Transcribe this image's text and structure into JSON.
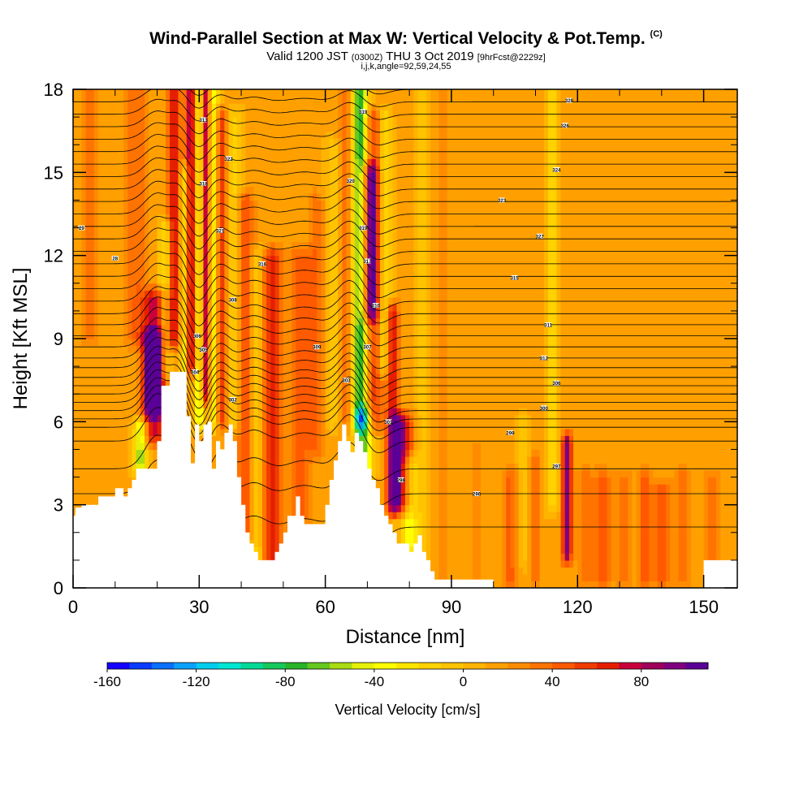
{
  "header": {
    "title": "Wind-Parallel Section at Max W: Vertical Velocity & Pot.Temp.",
    "copyright": "(C)",
    "valid_prefix": "Valid 1200 JST",
    "valid_utc": "(0300Z)",
    "valid_date": "THU 3 Oct 2019",
    "forecast": "[9hrFcst@2229z]",
    "params": "i,j,k,angle=92,59,24,55"
  },
  "chart_data": {
    "type": "heatmap",
    "xlabel": "Distance [nm]",
    "ylabel": "Height [Kft MSL]",
    "xlim": [
      0,
      158
    ],
    "ylim": [
      0,
      18
    ],
    "xticks": [
      0,
      30,
      60,
      90,
      120,
      150
    ],
    "yticks": [
      0,
      3,
      6,
      9,
      12,
      15,
      18
    ],
    "x_minor_step": 10,
    "y_minor_step": 1,
    "colorbar": {
      "label": "Vertical Velocity [cm/s]",
      "min": -160,
      "max": 110,
      "step": 10,
      "ticks": [
        -160,
        -120,
        -80,
        -40,
        0,
        40,
        80
      ],
      "colors": [
        "#1400ff",
        "#0a3cff",
        "#0a6eff",
        "#0aa0ff",
        "#00ccee",
        "#00e6d2",
        "#00d896",
        "#14c85a",
        "#28b428",
        "#64c81e",
        "#aadc14",
        "#e6f00a",
        "#ffff00",
        "#ffe600",
        "#ffd200",
        "#ffc300",
        "#ffb400",
        "#ffa000",
        "#ff8c00",
        "#ff7300",
        "#ff5a00",
        "#f03c00",
        "#e61e00",
        "#c8003c",
        "#a0005a",
        "#800080",
        "#5a0096"
      ]
    },
    "terrain_profile_kft": [
      [
        0,
        2.6
      ],
      [
        0.5,
        2.6
      ],
      [
        0.6,
        2.9
      ],
      [
        2,
        2.9
      ],
      [
        2,
        3
      ],
      [
        6,
        3
      ],
      [
        6,
        3.3
      ],
      [
        10,
        3.3
      ],
      [
        10,
        3.6
      ],
      [
        12,
        3.6
      ],
      [
        12,
        3.3
      ],
      [
        13,
        3.3
      ],
      [
        13,
        3.6
      ],
      [
        14,
        3.6
      ],
      [
        14,
        3.9
      ],
      [
        15,
        3.9
      ],
      [
        15,
        4.3
      ],
      [
        20,
        4.3
      ],
      [
        20,
        5.3
      ],
      [
        21,
        5.3
      ],
      [
        21,
        7.3
      ],
      [
        23,
        7.3
      ],
      [
        23,
        7.8
      ],
      [
        27,
        7.8
      ],
      [
        27,
        6.2
      ],
      [
        28,
        6.2
      ],
      [
        28,
        4.5
      ],
      [
        29,
        4.5
      ],
      [
        29,
        5.9
      ],
      [
        30,
        5.9
      ],
      [
        30,
        5.3
      ],
      [
        31,
        5.3
      ],
      [
        31,
        5.9
      ],
      [
        32,
        5.9
      ],
      [
        32,
        6
      ],
      [
        33,
        6
      ],
      [
        33,
        4.3
      ],
      [
        34,
        4.3
      ],
      [
        34,
        5.3
      ],
      [
        35,
        5.3
      ],
      [
        35,
        5
      ],
      [
        36,
        5
      ],
      [
        36,
        5.6
      ],
      [
        37,
        5.6
      ],
      [
        37,
        5.9
      ],
      [
        38,
        5.9
      ],
      [
        38,
        5.3
      ],
      [
        39,
        5.3
      ],
      [
        39,
        4
      ],
      [
        40,
        4
      ],
      [
        40,
        3
      ],
      [
        41,
        3
      ],
      [
        41,
        2
      ],
      [
        42,
        2
      ],
      [
        42,
        1.6
      ],
      [
        43,
        1.6
      ],
      [
        43,
        1.3
      ],
      [
        44,
        1.3
      ],
      [
        44,
        1
      ],
      [
        48,
        1
      ],
      [
        48,
        1.3
      ],
      [
        49,
        1.3
      ],
      [
        49,
        1.6
      ],
      [
        50,
        1.6
      ],
      [
        50,
        2
      ],
      [
        51,
        2
      ],
      [
        51,
        2.6
      ],
      [
        53,
        2.6
      ],
      [
        53,
        3.3
      ],
      [
        54,
        3.3
      ],
      [
        54,
        2.6
      ],
      [
        55,
        2.6
      ],
      [
        55,
        2.3
      ],
      [
        60,
        2.3
      ],
      [
        60,
        3
      ],
      [
        61,
        3
      ],
      [
        61,
        3.9
      ],
      [
        62,
        3.9
      ],
      [
        62,
        4.6
      ],
      [
        63,
        4.6
      ],
      [
        63,
        5.3
      ],
      [
        64,
        5.3
      ],
      [
        64,
        5.9
      ],
      [
        65,
        5.9
      ],
      [
        65,
        5.3
      ],
      [
        66,
        5.3
      ],
      [
        66,
        4.9
      ],
      [
        67,
        4.9
      ],
      [
        67,
        5.6
      ],
      [
        68,
        5.6
      ],
      [
        68,
        5.3
      ],
      [
        69,
        5.3
      ],
      [
        69,
        4.9
      ],
      [
        70,
        4.9
      ],
      [
        70,
        4.3
      ],
      [
        71,
        4.3
      ],
      [
        71,
        3.9
      ],
      [
        72,
        3.9
      ],
      [
        72,
        3.6
      ],
      [
        73,
        3.6
      ],
      [
        73,
        3
      ],
      [
        74,
        3
      ],
      [
        74,
        2.6
      ],
      [
        75,
        2.6
      ],
      [
        75,
        2.3
      ],
      [
        76,
        2.3
      ],
      [
        76,
        2
      ],
      [
        77,
        2
      ],
      [
        77,
        1.6
      ],
      [
        80,
        1.6
      ],
      [
        80,
        1.3
      ],
      [
        81,
        1.3
      ],
      [
        81,
        1.6
      ],
      [
        82,
        1.6
      ],
      [
        82,
        1.9
      ],
      [
        83,
        1.9
      ],
      [
        83,
        1.3
      ],
      [
        84,
        1.3
      ],
      [
        84,
        1
      ],
      [
        85,
        1
      ],
      [
        85,
        0.6
      ],
      [
        86,
        0.6
      ],
      [
        86,
        0.3
      ],
      [
        100,
        0.3
      ],
      [
        100,
        0
      ],
      [
        158,
        0
      ]
    ],
    "updraft_columns": [
      {
        "x": 4,
        "half_width": 2.5,
        "w": 20,
        "y0": 9,
        "y1": 18
      },
      {
        "x": 15,
        "half_width": 3,
        "w": 25,
        "y0": 9,
        "y1": 18
      },
      {
        "x": 19,
        "half_width": 2,
        "w": 100,
        "y0": 6.5,
        "y1": 9
      },
      {
        "x": 19.5,
        "half_width": 3,
        "w": 60,
        "y0": 5.5,
        "y1": 10.5
      },
      {
        "x": 16,
        "half_width": 1.5,
        "w": -70,
        "y0": 4.4,
        "y1": 5.8
      },
      {
        "x": 22,
        "half_width": 1.5,
        "w": -40,
        "y0": 7.8,
        "y1": 13
      },
      {
        "x": 24,
        "half_width": 1.5,
        "w": 60,
        "y0": 9,
        "y1": 18
      },
      {
        "x": 26.5,
        "half_width": 1,
        "w": -50,
        "y0": 7.8,
        "y1": 15
      },
      {
        "x": 28,
        "half_width": 1.2,
        "w": 70,
        "y0": 8,
        "y1": 18
      },
      {
        "x": 30,
        "half_width": 1,
        "w": -60,
        "y0": 6,
        "y1": 18
      },
      {
        "x": 31.5,
        "half_width": 1,
        "w": 75,
        "y0": 7,
        "y1": 18
      },
      {
        "x": 33.5,
        "half_width": 1.2,
        "w": -45,
        "y0": 6,
        "y1": 18
      },
      {
        "x": 35.5,
        "half_width": 1.5,
        "w": 50,
        "y0": 6,
        "y1": 17
      },
      {
        "x": 38,
        "half_width": 2,
        "w": -30,
        "y0": 6,
        "y1": 17
      },
      {
        "x": 41,
        "half_width": 2,
        "w": 40,
        "y0": 2,
        "y1": 14
      },
      {
        "x": 44,
        "half_width": 2,
        "w": -35,
        "y0": 1,
        "y1": 12
      },
      {
        "x": 47,
        "half_width": 2.5,
        "w": 55,
        "y0": 1,
        "y1": 12
      },
      {
        "x": 54,
        "half_width": 3,
        "w": 30,
        "y0": 2.6,
        "y1": 12
      },
      {
        "x": 58,
        "half_width": 2,
        "w": 25,
        "y0": 5,
        "y1": 14
      },
      {
        "x": 62,
        "half_width": 2,
        "w": -20,
        "y0": 6,
        "y1": 16
      },
      {
        "x": 66,
        "half_width": 2.5,
        "w": 40,
        "y0": 6,
        "y1": 18
      },
      {
        "x": 68,
        "half_width": 2,
        "w": -110,
        "y0": 6,
        "y1": 18
      },
      {
        "x": 69,
        "half_width": 2,
        "w": -80,
        "y0": 4.2,
        "y1": 6.2
      },
      {
        "x": 70.5,
        "half_width": 2,
        "w": 70,
        "y0": 10,
        "y1": 15
      },
      {
        "x": 71.5,
        "half_width": 2,
        "w": 45,
        "y0": 6,
        "y1": 17
      },
      {
        "x": 74,
        "half_width": 1.5,
        "w": -40,
        "y0": 8,
        "y1": 17
      },
      {
        "x": 76,
        "half_width": 1.5,
        "w": 60,
        "y0": 3,
        "y1": 10
      },
      {
        "x": 78,
        "half_width": 2.5,
        "w": 80,
        "y0": 3,
        "y1": 6
      },
      {
        "x": 80,
        "half_width": 2,
        "w": -50,
        "y0": 1.5,
        "y1": 4.5
      },
      {
        "x": 83,
        "half_width": 1.5,
        "w": -15,
        "y0": 1.5,
        "y1": 18
      },
      {
        "x": 88,
        "half_width": 1.5,
        "w": 15,
        "y0": 0.3,
        "y1": 18
      },
      {
        "x": 96,
        "half_width": 1.5,
        "w": 20,
        "y0": 0.3,
        "y1": 5
      },
      {
        "x": 104,
        "half_width": 2,
        "w": 30,
        "y0": 0.3,
        "y1": 4
      },
      {
        "x": 107,
        "half_width": 1.2,
        "w": -20,
        "y0": 1,
        "y1": 6
      },
      {
        "x": 110,
        "half_width": 1,
        "w": 30,
        "y0": 0.5,
        "y1": 4.5
      },
      {
        "x": 114,
        "half_width": 1.5,
        "w": -25,
        "y0": 3,
        "y1": 18
      },
      {
        "x": 117.5,
        "half_width": 1.2,
        "w": 80,
        "y0": 1.2,
        "y1": 5.3
      },
      {
        "x": 122,
        "half_width": 2,
        "w": 25,
        "y0": 0.3,
        "y1": 4
      },
      {
        "x": 126,
        "half_width": 2,
        "w": 30,
        "y0": 0.3,
        "y1": 4
      },
      {
        "x": 131,
        "half_width": 2,
        "w": 20,
        "y0": 0.3,
        "y1": 4
      },
      {
        "x": 136,
        "half_width": 1.5,
        "w": 35,
        "y0": 0.3,
        "y1": 4
      },
      {
        "x": 140,
        "half_width": 2,
        "w": 40,
        "y0": 0.3,
        "y1": 3.5
      },
      {
        "x": 145,
        "half_width": 2,
        "w": 25,
        "y0": 0.3,
        "y1": 4
      },
      {
        "x": 152,
        "half_width": 2,
        "w": 20,
        "y0": 0.3,
        "y1": 4
      }
    ],
    "theta_contour_heights_kft": [
      2.2,
      3.4,
      4.3,
      5.3,
      5.8,
      6.1,
      6.4,
      6.7,
      7.0,
      7.3,
      7.6,
      7.95,
      8.3,
      8.7,
      9.1,
      9.5,
      9.9,
      10.35,
      10.8,
      11.25,
      11.7,
      12.15,
      12.6,
      13.05,
      13.5,
      13.95,
      14.4,
      14.85,
      15.3,
      15.75,
      16.2,
      16.65,
      17.1,
      17.55,
      18.0
    ],
    "wave_bumps": [
      {
        "x": 20,
        "amp": 1.2,
        "width": 4
      },
      {
        "x": 25,
        "amp": 0.8,
        "width": 2.5
      },
      {
        "x": 30,
        "amp": -0.6,
        "width": 2.5
      },
      {
        "x": 35,
        "amp": 0.6,
        "width": 3
      },
      {
        "x": 43,
        "amp": 0.4,
        "width": 4
      },
      {
        "x": 55,
        "amp": 0.3,
        "width": 5
      },
      {
        "x": 66,
        "amp": 1.0,
        "width": 4
      },
      {
        "x": 72,
        "amp": -0.5,
        "width": 4
      }
    ],
    "contour_labels": [
      {
        "x": 2,
        "y": 13,
        "text": "29"
      },
      {
        "x": 10,
        "y": 11.9,
        "text": "28"
      },
      {
        "x": 29.5,
        "y": 9.1,
        "text": "306"
      },
      {
        "x": 31,
        "y": 8.6,
        "text": "305"
      },
      {
        "x": 29,
        "y": 7.8,
        "text": "304"
      },
      {
        "x": 38,
        "y": 6.8,
        "text": "302"
      },
      {
        "x": 31,
        "y": 16.9,
        "text": "313"
      },
      {
        "x": 37,
        "y": 15.5,
        "text": "322"
      },
      {
        "x": 31,
        "y": 14.6,
        "text": "318"
      },
      {
        "x": 35,
        "y": 12.9,
        "text": "321"
      },
      {
        "x": 38,
        "y": 10.4,
        "text": "308"
      },
      {
        "x": 45,
        "y": 11.7,
        "text": "316"
      },
      {
        "x": 58,
        "y": 8.7,
        "text": "309"
      },
      {
        "x": 65,
        "y": 7.5,
        "text": "303"
      },
      {
        "x": 66,
        "y": 14.7,
        "text": "320"
      },
      {
        "x": 69,
        "y": 17.2,
        "text": "319"
      },
      {
        "x": 69,
        "y": 13.0,
        "text": "319"
      },
      {
        "x": 70,
        "y": 11.8,
        "text": "317"
      },
      {
        "x": 72,
        "y": 10.2,
        "text": "310"
      },
      {
        "x": 70,
        "y": 8.7,
        "text": "307"
      },
      {
        "x": 75,
        "y": 6.0,
        "text": "301"
      },
      {
        "x": 78,
        "y": 3.9,
        "text": "298"
      },
      {
        "x": 96,
        "y": 3.4,
        "text": "296"
      },
      {
        "x": 104,
        "y": 5.6,
        "text": "299"
      },
      {
        "x": 105,
        "y": 11.2,
        "text": "315"
      },
      {
        "x": 102,
        "y": 14.0,
        "text": "323"
      },
      {
        "x": 111,
        "y": 12.7,
        "text": "327"
      },
      {
        "x": 113,
        "y": 9.5,
        "text": "311"
      },
      {
        "x": 112,
        "y": 8.3,
        "text": "312"
      },
      {
        "x": 115,
        "y": 7.4,
        "text": "306"
      },
      {
        "x": 112,
        "y": 6.5,
        "text": "300"
      },
      {
        "x": 115,
        "y": 15.1,
        "text": "324"
      },
      {
        "x": 117,
        "y": 16.7,
        "text": "326"
      },
      {
        "x": 118,
        "y": 17.6,
        "text": "328"
      },
      {
        "x": 115,
        "y": 4.4,
        "text": "297"
      }
    ]
  }
}
